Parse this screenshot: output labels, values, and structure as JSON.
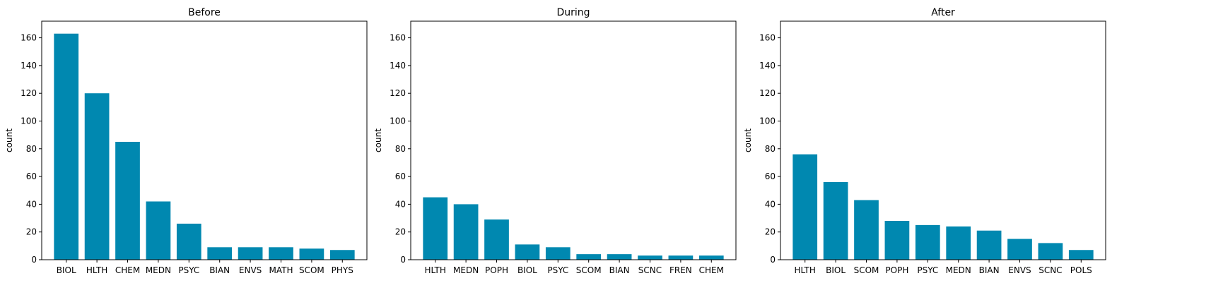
{
  "colors": {
    "bar": "#0088b0",
    "axis": "#000000",
    "background": "#ffffff"
  },
  "chart_data": [
    {
      "type": "bar",
      "title": "Before",
      "ylabel": "count",
      "ylim": [
        0,
        172
      ],
      "yticks": [
        0,
        20,
        40,
        60,
        80,
        100,
        120,
        140,
        160
      ],
      "grid": false,
      "categories": [
        "BIOL",
        "HLTH",
        "CHEM",
        "MEDN",
        "PSYC",
        "BIAN",
        "ENVS",
        "MATH",
        "SCOM",
        "PHYS"
      ],
      "values": [
        163,
        120,
        85,
        42,
        26,
        9,
        9,
        9,
        8,
        7
      ]
    },
    {
      "type": "bar",
      "title": "During",
      "ylabel": "count",
      "ylim": [
        0,
        172
      ],
      "yticks": [
        0,
        20,
        40,
        60,
        80,
        100,
        120,
        140,
        160
      ],
      "grid": false,
      "categories": [
        "HLTH",
        "MEDN",
        "POPH",
        "BIOL",
        "PSYC",
        "SCOM",
        "BIAN",
        "SCNC",
        "FREN",
        "CHEM"
      ],
      "values": [
        45,
        40,
        29,
        11,
        9,
        4,
        4,
        3,
        3,
        3
      ]
    },
    {
      "type": "bar",
      "title": "After",
      "ylabel": "count",
      "ylim": [
        0,
        172
      ],
      "yticks": [
        0,
        20,
        40,
        60,
        80,
        100,
        120,
        140,
        160
      ],
      "grid": false,
      "categories": [
        "HLTH",
        "BIOL",
        "SCOM",
        "POPH",
        "PSYC",
        "MEDN",
        "BIAN",
        "ENVS",
        "SCNC",
        "POLS"
      ],
      "values": [
        76,
        56,
        43,
        28,
        25,
        24,
        21,
        15,
        12,
        7
      ]
    }
  ]
}
